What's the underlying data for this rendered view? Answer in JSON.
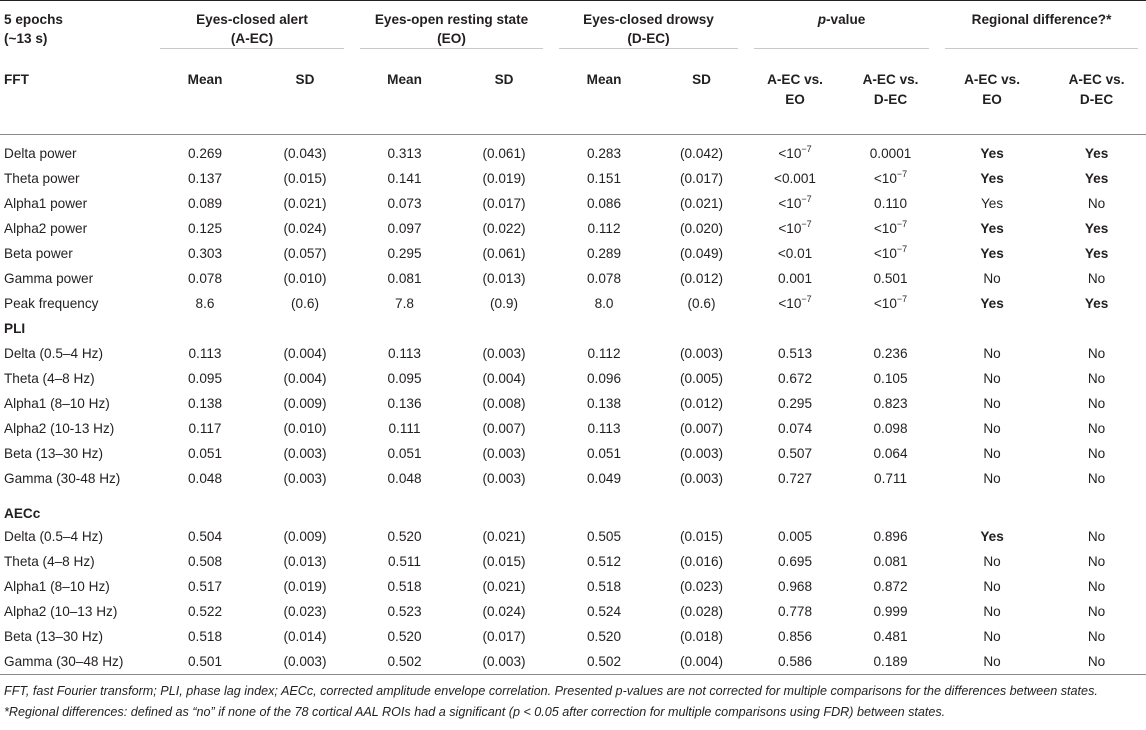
{
  "header": {
    "epochs": "5 epochs",
    "epochs_sub": "(~13 s)",
    "group1": "Eyes-closed alert",
    "group1_sub": "(A-EC)",
    "group2": "Eyes-open resting state",
    "group2_sub": "(EO)",
    "group3": "Eyes-closed drowsy",
    "group3_sub": "(D-EC)",
    "pvalue_p": "p",
    "pvalue_rest": "-value",
    "regional": "Regional difference?*",
    "section_fft": "FFT",
    "mean": "Mean",
    "sd": "SD",
    "cmp1_line1": "A-EC vs.",
    "cmp1_line2": "EO",
    "cmp2_line1": "A-EC vs.",
    "cmp2_line2": "D-EC"
  },
  "sections": [
    {
      "name": "FFT",
      "rows": [
        {
          "label": "Delta power",
          "aec_mean": "0.269",
          "aec_sd": "(0.043)",
          "eo_mean": "0.313",
          "eo_sd": "(0.061)",
          "dec_mean": "0.283",
          "dec_sd": "(0.042)",
          "p1": "<10",
          "p1_exp": "−7",
          "p2": "0.0001",
          "p2_exp": "",
          "r1": "Yes",
          "r1_bold": true,
          "r2": "Yes",
          "r2_bold": true
        },
        {
          "label": "Theta power",
          "aec_mean": "0.137",
          "aec_sd": "(0.015)",
          "eo_mean": "0.141",
          "eo_sd": "(0.019)",
          "dec_mean": "0.151",
          "dec_sd": "(0.017)",
          "p1": "<0.001",
          "p1_exp": "",
          "p2": "<10",
          "p2_exp": "−7",
          "r1": "Yes",
          "r1_bold": true,
          "r2": "Yes",
          "r2_bold": true
        },
        {
          "label": "Alpha1 power",
          "aec_mean": "0.089",
          "aec_sd": "(0.021)",
          "eo_mean": "0.073",
          "eo_sd": "(0.017)",
          "dec_mean": "0.086",
          "dec_sd": "(0.021)",
          "p1": "<10",
          "p1_exp": "−7",
          "p2": "0.110",
          "p2_exp": "",
          "r1": "Yes",
          "r1_bold": false,
          "r2": "No",
          "r2_bold": false
        },
        {
          "label": "Alpha2 power",
          "aec_mean": "0.125",
          "aec_sd": "(0.024)",
          "eo_mean": "0.097",
          "eo_sd": "(0.022)",
          "dec_mean": "0.112",
          "dec_sd": "(0.020)",
          "p1": "<10",
          "p1_exp": "−7",
          "p2": "<10",
          "p2_exp": "−7",
          "r1": "Yes",
          "r1_bold": true,
          "r2": "Yes",
          "r2_bold": true
        },
        {
          "label": "Beta power",
          "aec_mean": "0.303",
          "aec_sd": "(0.057)",
          "eo_mean": "0.295",
          "eo_sd": "(0.061)",
          "dec_mean": "0.289",
          "dec_sd": "(0.049)",
          "p1": "<0.01",
          "p1_exp": "",
          "p2": "<10",
          "p2_exp": "−7",
          "r1": "Yes",
          "r1_bold": true,
          "r2": "Yes",
          "r2_bold": true
        },
        {
          "label": "Gamma power",
          "aec_mean": "0.078",
          "aec_sd": "(0.010)",
          "eo_mean": "0.081",
          "eo_sd": "(0.013)",
          "dec_mean": "0.078",
          "dec_sd": "(0.012)",
          "p1": "0.001",
          "p1_exp": "",
          "p2": "0.501",
          "p2_exp": "",
          "r1": "No",
          "r1_bold": false,
          "r2": "No",
          "r2_bold": false
        },
        {
          "label": "Peak frequency",
          "aec_mean": "8.6",
          "aec_sd": "(0.6)",
          "eo_mean": "7.8",
          "eo_sd": "(0.9)",
          "dec_mean": "8.0",
          "dec_sd": "(0.6)",
          "p1": "<10",
          "p1_exp": "−7",
          "p2": "<10",
          "p2_exp": "−7",
          "r1": "Yes",
          "r1_bold": true,
          "r2": "Yes",
          "r2_bold": true
        }
      ]
    },
    {
      "name": "PLI",
      "rows": [
        {
          "label": "Delta (0.5–4 Hz)",
          "aec_mean": "0.113",
          "aec_sd": "(0.004)",
          "eo_mean": "0.113",
          "eo_sd": "(0.003)",
          "dec_mean": "0.112",
          "dec_sd": "(0.003)",
          "p1": "0.513",
          "p1_exp": "",
          "p2": "0.236",
          "p2_exp": "",
          "r1": "No",
          "r1_bold": false,
          "r2": "No",
          "r2_bold": false
        },
        {
          "label": "Theta (4–8 Hz)",
          "aec_mean": "0.095",
          "aec_sd": "(0.004)",
          "eo_mean": "0.095",
          "eo_sd": "(0.004)",
          "dec_mean": "0.096",
          "dec_sd": "(0.005)",
          "p1": "0.672",
          "p1_exp": "",
          "p2": "0.105",
          "p2_exp": "",
          "r1": "No",
          "r1_bold": false,
          "r2": "No",
          "r2_bold": false
        },
        {
          "label": "Alpha1 (8–10 Hz)",
          "aec_mean": "0.138",
          "aec_sd": "(0.009)",
          "eo_mean": "0.136",
          "eo_sd": "(0.008)",
          "dec_mean": "0.138",
          "dec_sd": "(0.012)",
          "p1": "0.295",
          "p1_exp": "",
          "p2": "0.823",
          "p2_exp": "",
          "r1": "No",
          "r1_bold": false,
          "r2": "No",
          "r2_bold": false
        },
        {
          "label": "Alpha2 (10-13 Hz)",
          "aec_mean": "0.117",
          "aec_sd": "(0.010)",
          "eo_mean": "0.111",
          "eo_sd": "(0.007)",
          "dec_mean": "0.113",
          "dec_sd": "(0.007)",
          "p1": "0.074",
          "p1_exp": "",
          "p2": "0.098",
          "p2_exp": "",
          "r1": "No",
          "r1_bold": false,
          "r2": "No",
          "r2_bold": false
        },
        {
          "label": "Beta (13–30 Hz)",
          "aec_mean": "0.051",
          "aec_sd": "(0.003)",
          "eo_mean": "0.051",
          "eo_sd": "(0.003)",
          "dec_mean": "0.051",
          "dec_sd": "(0.003)",
          "p1": "0.507",
          "p1_exp": "",
          "p2": "0.064",
          "p2_exp": "",
          "r1": "No",
          "r1_bold": false,
          "r2": "No",
          "r2_bold": false
        },
        {
          "label": "Gamma (30-48 Hz)",
          "aec_mean": "0.048",
          "aec_sd": "(0.003)",
          "eo_mean": "0.048",
          "eo_sd": "(0.003)",
          "dec_mean": "0.049",
          "dec_sd": "(0.003)",
          "p1": "0.727",
          "p1_exp": "",
          "p2": "0.711",
          "p2_exp": "",
          "r1": "No",
          "r1_bold": false,
          "r2": "No",
          "r2_bold": false
        }
      ]
    },
    {
      "name": "AECc",
      "rows": [
        {
          "label": "Delta (0.5–4 Hz)",
          "aec_mean": "0.504",
          "aec_sd": "(0.009)",
          "eo_mean": "0.520",
          "eo_sd": "(0.021)",
          "dec_mean": "0.505",
          "dec_sd": "(0.015)",
          "p1": "0.005",
          "p1_exp": "",
          "p2": "0.896",
          "p2_exp": "",
          "r1": "Yes",
          "r1_bold": true,
          "r2": "No",
          "r2_bold": false
        },
        {
          "label": "Theta (4–8 Hz)",
          "aec_mean": "0.508",
          "aec_sd": "(0.013)",
          "eo_mean": "0.511",
          "eo_sd": "(0.015)",
          "dec_mean": "0.512",
          "dec_sd": "(0.016)",
          "p1": "0.695",
          "p1_exp": "",
          "p2": "0.081",
          "p2_exp": "",
          "r1": "No",
          "r1_bold": false,
          "r2": "No",
          "r2_bold": false
        },
        {
          "label": "Alpha1 (8–10 Hz)",
          "aec_mean": "0.517",
          "aec_sd": "(0.019)",
          "eo_mean": "0.518",
          "eo_sd": "(0.021)",
          "dec_mean": "0.518",
          "dec_sd": "(0.023)",
          "p1": "0.968",
          "p1_exp": "",
          "p2": "0.872",
          "p2_exp": "",
          "r1": "No",
          "r1_bold": false,
          "r2": "No",
          "r2_bold": false
        },
        {
          "label": "Alpha2 (10–13 Hz)",
          "aec_mean": "0.522",
          "aec_sd": "(0.023)",
          "eo_mean": "0.523",
          "eo_sd": "(0.024)",
          "dec_mean": "0.524",
          "dec_sd": "(0.028)",
          "p1": "0.778",
          "p1_exp": "",
          "p2": "0.999",
          "p2_exp": "",
          "r1": "No",
          "r1_bold": false,
          "r2": "No",
          "r2_bold": false
        },
        {
          "label": "Beta (13–30 Hz)",
          "aec_mean": "0.518",
          "aec_sd": "(0.014)",
          "eo_mean": "0.520",
          "eo_sd": "(0.017)",
          "dec_mean": "0.520",
          "dec_sd": "(0.018)",
          "p1": "0.856",
          "p1_exp": "",
          "p2": "0.481",
          "p2_exp": "",
          "r1": "No",
          "r1_bold": false,
          "r2": "No",
          "r2_bold": false
        },
        {
          "label": "Gamma (30–48 Hz)",
          "aec_mean": "0.501",
          "aec_sd": "(0.003)",
          "eo_mean": "0.502",
          "eo_sd": "(0.003)",
          "dec_mean": "0.502",
          "dec_sd": "(0.004)",
          "p1": "0.586",
          "p1_exp": "",
          "p2": "0.189",
          "p2_exp": "",
          "r1": "No",
          "r1_bold": false,
          "r2": "No",
          "r2_bold": false
        }
      ]
    }
  ],
  "footnotes": {
    "line1": "FFT, fast Fourier transform; PLI, phase lag index; AECc, corrected amplitude envelope correlation. Presented p-values are not corrected for multiple comparisons for the differences between states.",
    "line2": "*Regional differences: defined as “no” if none of the 78 cortical AAL ROIs had a significant (p < 0.05 after correction for multiple comparisons using FDR) between states."
  }
}
